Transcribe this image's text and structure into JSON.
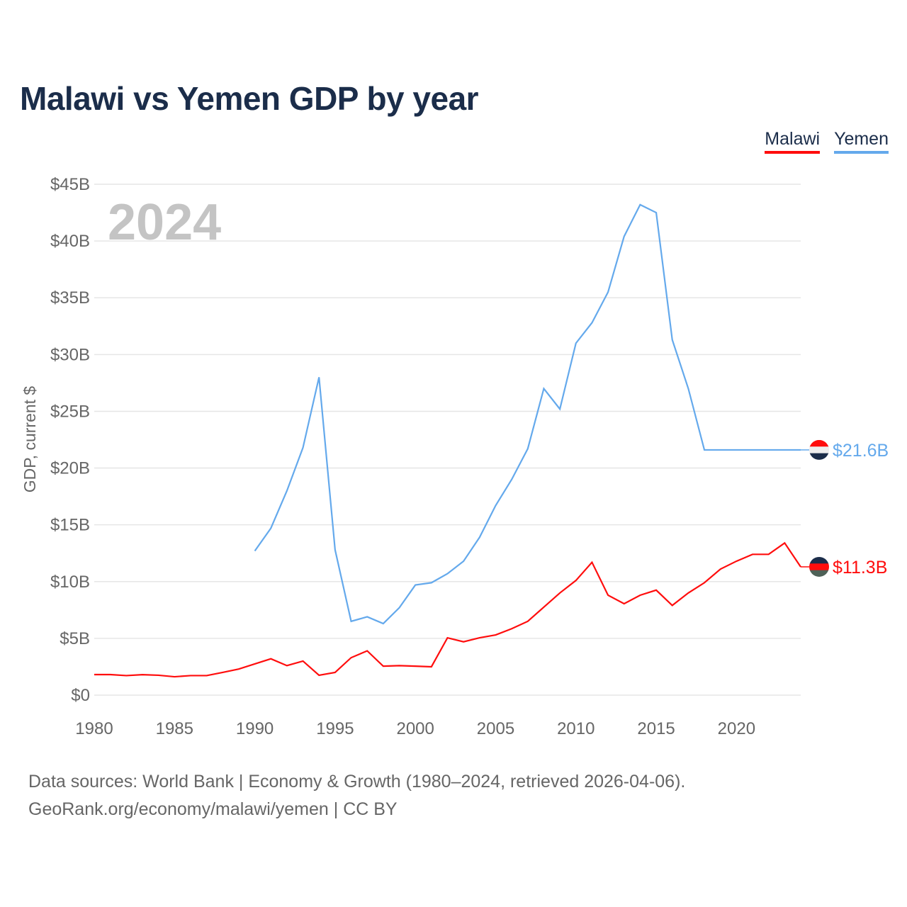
{
  "title": "Malawi vs Yemen GDP by year",
  "year_label": "2024",
  "source_line1": "Data sources: World Bank | Economy & Growth (1980–2024, retrieved 2026-04-06).",
  "source_line2": "GeoRank.org/economy/malawi/yemen | CC BY",
  "chart_data": {
    "type": "line",
    "title": "Malawi vs Yemen GDP by year",
    "xlabel": "",
    "ylabel": "GDP, current $",
    "xlim": [
      1980,
      2024
    ],
    "ylim": [
      0,
      45
    ],
    "grid": true,
    "legend_position": "top-right",
    "x_ticks": [
      "1980",
      "1985",
      "1990",
      "1995",
      "2000",
      "2005",
      "2010",
      "2015",
      "2020"
    ],
    "y_ticks": [
      "$0",
      "$5B",
      "$10B",
      "$15B",
      "$20B",
      "$25B",
      "$30B",
      "$35B",
      "$40B",
      "$45B"
    ],
    "series": [
      {
        "name": "Malawi",
        "color": "#ff0d0d",
        "end_label": "$11.3B",
        "x": [
          1980,
          1981,
          1982,
          1983,
          1984,
          1985,
          1986,
          1987,
          1988,
          1989,
          1990,
          1991,
          1992,
          1993,
          1994,
          1995,
          1996,
          1997,
          1998,
          1999,
          2000,
          2001,
          2002,
          2003,
          2004,
          2005,
          2006,
          2007,
          2008,
          2009,
          2010,
          2011,
          2012,
          2013,
          2014,
          2015,
          2016,
          2017,
          2018,
          2019,
          2020,
          2021,
          2022,
          2023,
          2024
        ],
        "values": [
          1.81,
          1.81,
          1.72,
          1.8,
          1.75,
          1.62,
          1.72,
          1.72,
          2.0,
          2.3,
          2.75,
          3.2,
          2.6,
          3.0,
          1.75,
          2.0,
          3.3,
          3.9,
          2.55,
          2.6,
          2.55,
          2.5,
          5.05,
          4.7,
          5.05,
          5.3,
          5.85,
          6.5,
          7.75,
          9.0,
          10.1,
          11.7,
          8.8,
          8.05,
          8.8,
          9.25,
          7.9,
          9.0,
          9.9,
          11.1,
          11.8,
          12.4,
          12.4,
          13.4,
          11.3
        ]
      },
      {
        "name": "Yemen",
        "color": "#64a9ec",
        "end_label": "$21.6B",
        "x": [
          1990,
          1991,
          1992,
          1993,
          1994,
          1995,
          1996,
          1997,
          1998,
          1999,
          2000,
          2001,
          2002,
          2003,
          2004,
          2005,
          2006,
          2007,
          2008,
          2009,
          2010,
          2011,
          2012,
          2013,
          2014,
          2015,
          2016,
          2017,
          2018,
          2019,
          2020,
          2021,
          2022,
          2023,
          2024
        ],
        "values": [
          12.7,
          14.7,
          18.0,
          21.8,
          28.0,
          12.8,
          6.5,
          6.9,
          6.3,
          7.7,
          9.7,
          9.9,
          10.7,
          11.8,
          13.9,
          16.7,
          19.0,
          21.7,
          27.0,
          25.2,
          31.0,
          32.8,
          35.5,
          40.4,
          43.2,
          42.5,
          31.3,
          27.0,
          21.6,
          21.6,
          21.6,
          21.6,
          21.6,
          21.6,
          21.6
        ]
      }
    ]
  }
}
